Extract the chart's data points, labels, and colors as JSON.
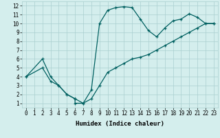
{
  "xlabel": "Humidex (Indice chaleur)",
  "line1_x": [
    0,
    2,
    3,
    4,
    5,
    6,
    6,
    7,
    8,
    9,
    10,
    11,
    12,
    13,
    14,
    15,
    16,
    17,
    18,
    19,
    20,
    21,
    22,
    23
  ],
  "line1_y": [
    4,
    6,
    4,
    3,
    2,
    1.5,
    1,
    1,
    2.5,
    10,
    11.5,
    11.8,
    11.9,
    11.8,
    10.5,
    9.2,
    8.5,
    9.5,
    10.3,
    10.5,
    11.1,
    10.7,
    10.0,
    10.0
  ],
  "line2_x": [
    0,
    2,
    3,
    4,
    5,
    6,
    7,
    8,
    9,
    10,
    11,
    12,
    13,
    14,
    15,
    16,
    17,
    18,
    19,
    20,
    21,
    22,
    23
  ],
  "line2_y": [
    4,
    5,
    3.5,
    3,
    2,
    1.5,
    1,
    1.5,
    3,
    4.5,
    5,
    5.5,
    6,
    6.2,
    6.5,
    7,
    7.5,
    8,
    8.5,
    9,
    9.5,
    10,
    10
  ],
  "color": "#006060",
  "bg_color": "#d4eeed",
  "grid_color": "#aacfcf",
  "xlim": [
    -0.5,
    23.5
  ],
  "ylim": [
    0.5,
    12.5
  ],
  "xticks": [
    0,
    1,
    2,
    3,
    4,
    5,
    6,
    7,
    8,
    9,
    10,
    11,
    12,
    13,
    14,
    15,
    16,
    17,
    18,
    19,
    20,
    21,
    22,
    23
  ],
  "yticks": [
    1,
    2,
    3,
    4,
    5,
    6,
    7,
    8,
    9,
    10,
    11,
    12
  ],
  "tick_fontsize": 5.5,
  "xlabel_fontsize": 6.5
}
